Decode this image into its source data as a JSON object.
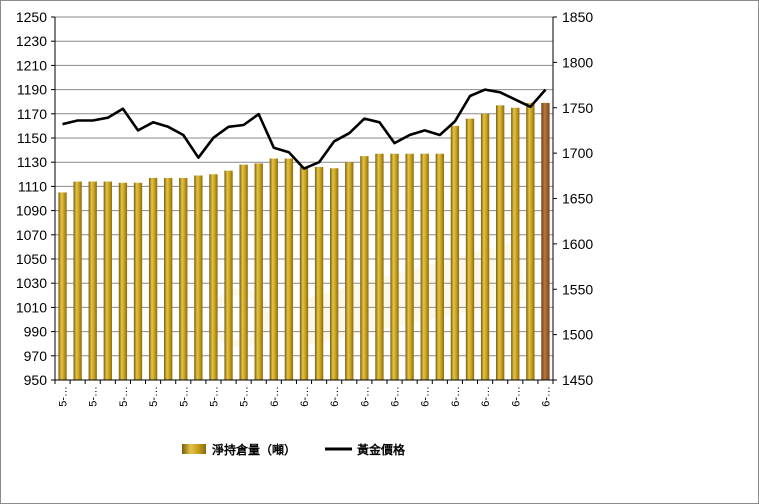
{
  "chart_data": {
    "type": "bar",
    "title": "",
    "xlabel": "",
    "ylabel": "",
    "categories": [
      "5-",
      "5-",
      "5-",
      "5-",
      "5-",
      "5-",
      "5-",
      "5-",
      "5-",
      "5-",
      "5-",
      "5-",
      "6-",
      "6-",
      "6-",
      "6-",
      "6-",
      "6-",
      "6-",
      "6-",
      "6-",
      "6-",
      "6-",
      "6-",
      "6-",
      "6-",
      "6-",
      "6-",
      "6-",
      "6-",
      "6-",
      "6-",
      "6-"
    ],
    "x_tick_labels": [
      "5-…",
      "5-…",
      "5-…",
      "5-…",
      "5-…",
      "5-…",
      "5-…",
      "6-…",
      "6-…",
      "6-…",
      "6-…",
      "6-…",
      "6-…",
      "6-…",
      "6-…",
      "6-…",
      "6-…"
    ],
    "left_axis": {
      "ylim": [
        950,
        1250
      ],
      "ticks": [
        950,
        970,
        990,
        1010,
        1030,
        1050,
        1070,
        1090,
        1110,
        1130,
        1150,
        1170,
        1190,
        1210,
        1230,
        1250
      ]
    },
    "right_axis": {
      "ylim": [
        1450,
        1850
      ],
      "ticks": [
        1450,
        1500,
        1550,
        1600,
        1650,
        1700,
        1750,
        1800,
        1850
      ]
    },
    "grid": "horizontal",
    "legend_position": "bottom",
    "series": [
      {
        "name": "淨持倉量（噸）",
        "type": "bar",
        "axis": "left",
        "color": "#c9a21c",
        "last_bar_color": "#a0612a",
        "values": [
          1105,
          1114,
          1114,
          1114,
          1113,
          1113,
          1117,
          1117,
          1117,
          1119,
          1120,
          1123,
          1128,
          1129,
          1133,
          1133,
          1126,
          1126,
          1125,
          1130,
          1135,
          1137,
          1137,
          1137,
          1137,
          1137,
          1160,
          1166,
          1170,
          1177,
          1175,
          1179,
          1179
        ]
      },
      {
        "name": "黃金價格",
        "type": "line",
        "axis": "right",
        "color": "#000000",
        "values": [
          1732,
          1736,
          1736,
          1739,
          1749,
          1725,
          1734,
          1729,
          1720,
          1695,
          1717,
          1729,
          1731,
          1743,
          1706,
          1701,
          1683,
          1690,
          1713,
          1722,
          1738,
          1734,
          1711,
          1720,
          1725,
          1720,
          1735,
          1763,
          1770,
          1767,
          1759,
          1751,
          1770
        ]
      }
    ]
  }
}
